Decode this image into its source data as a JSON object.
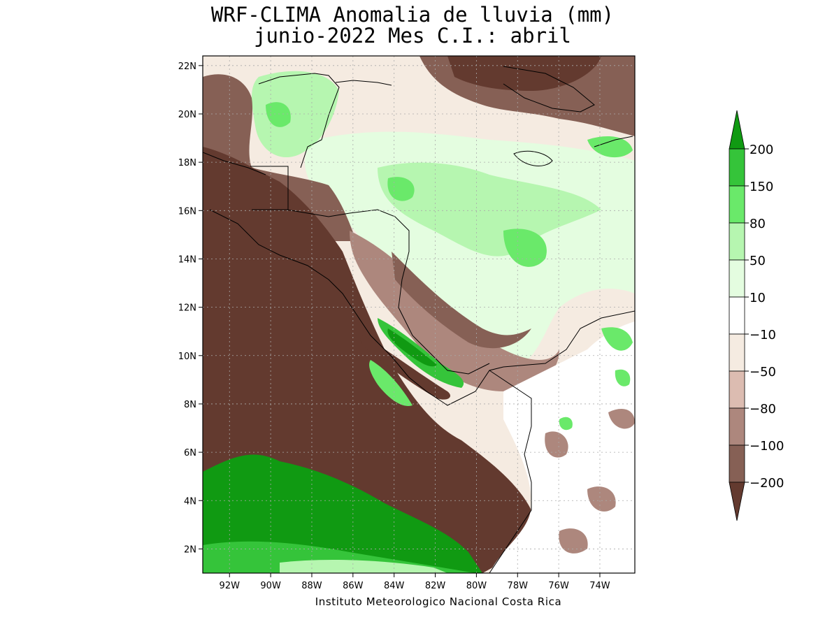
{
  "title_line1": "WRF-CLIMA Anomalia de lluvia (mm)",
  "title_line2": "junio-2022 Mes C.I.: abril",
  "credit": "Instituto Meteorologico Nacional Costa Rica",
  "map": {
    "lon_range": [
      -93.3,
      -72.3
    ],
    "lat_range": [
      1.0,
      22.4
    ],
    "lon_ticks": [
      {
        "value": -92,
        "label": "92W"
      },
      {
        "value": -90,
        "label": "90W"
      },
      {
        "value": -88,
        "label": "88W"
      },
      {
        "value": -86,
        "label": "86W"
      },
      {
        "value": -84,
        "label": "84W"
      },
      {
        "value": -82,
        "label": "82W"
      },
      {
        "value": -80,
        "label": "80W"
      },
      {
        "value": -78,
        "label": "78W"
      },
      {
        "value": -76,
        "label": "76W"
      },
      {
        "value": -74,
        "label": "74W"
      }
    ],
    "lat_ticks": [
      {
        "value": 2,
        "label": "2N"
      },
      {
        "value": 4,
        "label": "4N"
      },
      {
        "value": 6,
        "label": "6N"
      },
      {
        "value": 8,
        "label": "8N"
      },
      {
        "value": 10,
        "label": "10N"
      },
      {
        "value": 12,
        "label": "12N"
      },
      {
        "value": 14,
        "label": "14N"
      },
      {
        "value": 16,
        "label": "16N"
      },
      {
        "value": 18,
        "label": "18N"
      },
      {
        "value": 20,
        "label": "20N"
      },
      {
        "value": 22,
        "label": "22N"
      }
    ],
    "grid": true
  },
  "legend": {
    "levels": [
      "200",
      "150",
      "80",
      "50",
      "10",
      "-10",
      "-50",
      "-80",
      "-100",
      "-200"
    ],
    "colors": [
      "#109a12",
      "#35c43a",
      "#6ae96a",
      "#b6f6b0",
      "#e4fde0",
      "#ffffff",
      "#f5ebe1",
      "#dcbcb1",
      "#ad877d",
      "#866055",
      "#633a2f"
    ]
  },
  "colors": {
    "very_dry": "#633a2f",
    "dry": "#866055",
    "mod_dry": "#ad877d",
    "slight_dry": "#dcbcb1",
    "near_dry": "#f5ebe1",
    "neutral": "#ffffff",
    "near_wet": "#e4fde0",
    "slight_wet": "#b6f6b0",
    "mod_wet": "#6ae96a",
    "wet": "#35c43a",
    "very_wet": "#109a12"
  }
}
